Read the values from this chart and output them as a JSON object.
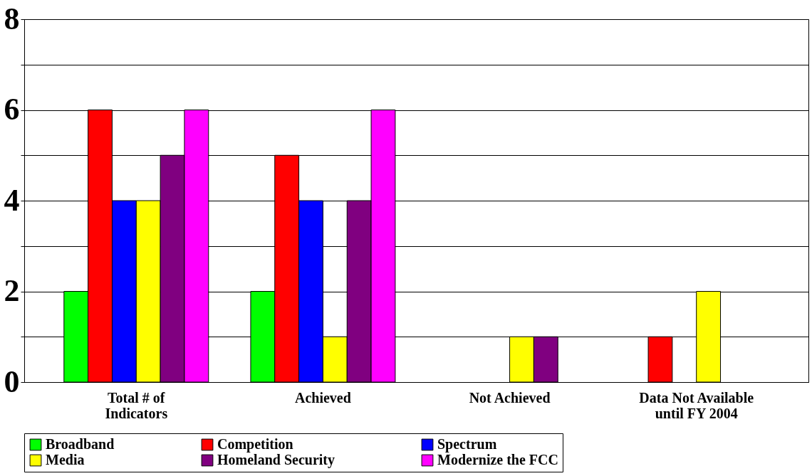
{
  "chart_data": {
    "type": "bar",
    "categories": [
      "Total # of Indicators",
      "Achieved",
      "Not Achieved",
      "Data Not Available until FY 2004"
    ],
    "series": [
      {
        "name": "Broadband",
        "color": "#00ff00",
        "values": [
          2,
          2,
          0,
          0
        ]
      },
      {
        "name": "Competition",
        "color": "#ff0000",
        "values": [
          6,
          5,
          0,
          1
        ]
      },
      {
        "name": "Spectrum",
        "color": "#0000ff",
        "values": [
          4,
          4,
          0,
          0
        ]
      },
      {
        "name": "Media",
        "color": "#ffff00",
        "values": [
          4,
          1,
          1,
          2
        ]
      },
      {
        "name": "Homeland Security",
        "color": "#800080",
        "values": [
          5,
          4,
          1,
          0
        ]
      },
      {
        "name": "Modernize the FCC",
        "color": "#ff00ff",
        "values": [
          6,
          6,
          0,
          0
        ]
      }
    ],
    "ylim": [
      0,
      8
    ],
    "yticks": [
      0,
      {
        "value": 1,
        "label": null
      },
      2,
      {
        "value": 3,
        "label": null
      },
      4,
      {
        "value": 5,
        "label": null
      },
      6,
      {
        "value": 7,
        "label": null
      },
      8
    ],
    "grid": "y",
    "legend": "bottom"
  }
}
